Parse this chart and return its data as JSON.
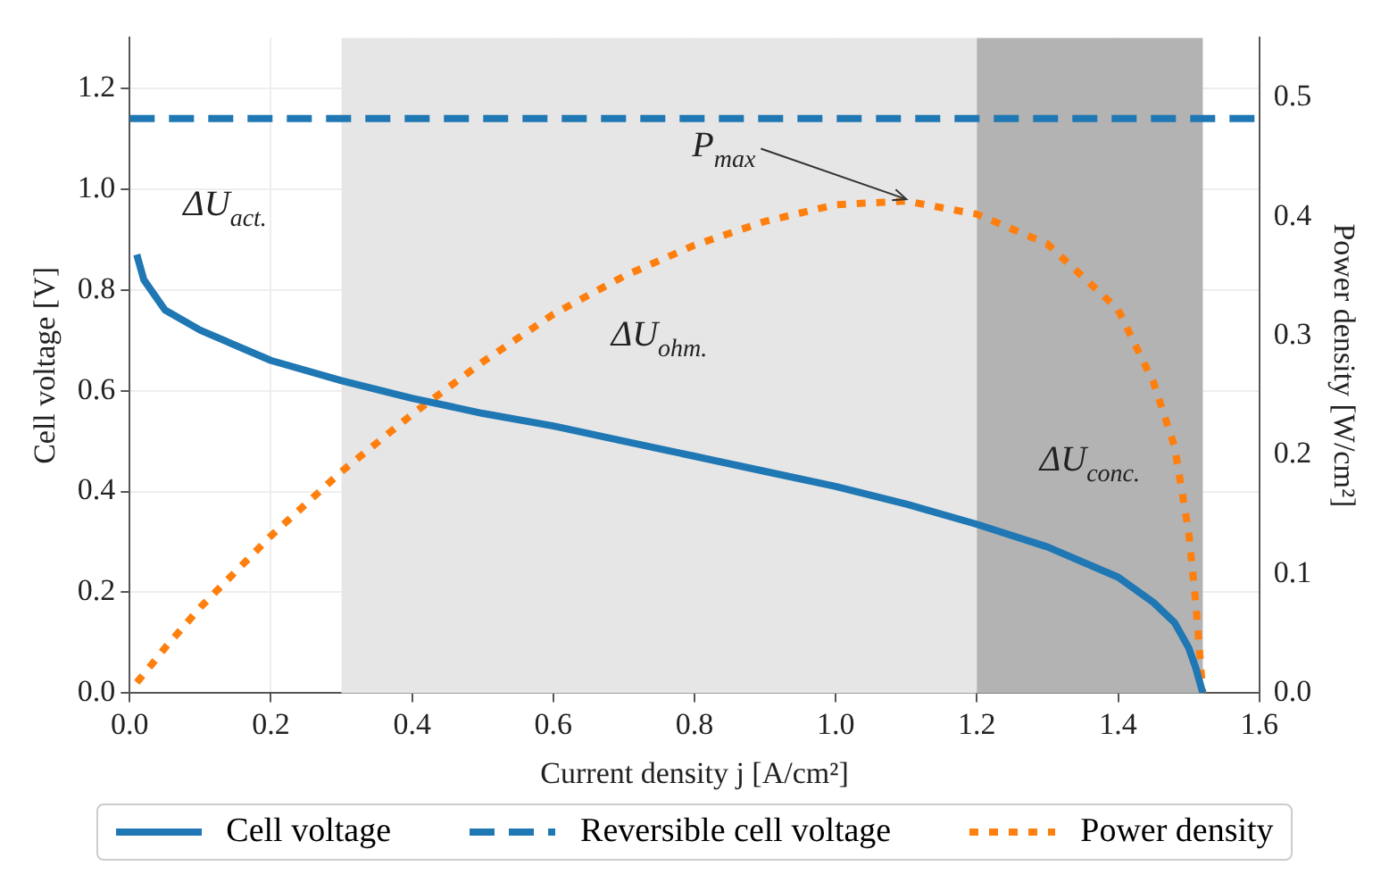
{
  "chart_data": {
    "type": "line",
    "xlabel": "Current density j [A/cm²]",
    "ylabel": "Cell voltage [V]",
    "y2label": "Power density [W/cm²]",
    "xlim": [
      0,
      1.6
    ],
    "xticks": [
      {
        "value": 0,
        "label": "0.0"
      },
      {
        "value": 0.2,
        "label": "0.2"
      },
      {
        "value": 0.4,
        "label": "0.4"
      },
      {
        "value": 0.6,
        "label": "0.6"
      },
      {
        "value": 0.8,
        "label": "0.8"
      },
      {
        "value": 1.0,
        "label": "1.0"
      },
      {
        "value": 1.2,
        "label": "1.2"
      },
      {
        "value": 1.4,
        "label": "1.4"
      },
      {
        "value": 1.6,
        "label": "1.6"
      }
    ],
    "ylim": [
      0,
      1.3
    ],
    "yticks": [
      {
        "value": 0,
        "label": "0.0"
      },
      {
        "value": 0.2,
        "label": "0.2"
      },
      {
        "value": 0.4,
        "label": "0.4"
      },
      {
        "value": 0.6,
        "label": "0.6"
      },
      {
        "value": 0.8,
        "label": "0.8"
      },
      {
        "value": 1.0,
        "label": "1.0"
      },
      {
        "value": 1.2,
        "label": "1.2"
      }
    ],
    "y2lim": [
      0,
      0.55
    ],
    "y2ticks": [
      {
        "value": 0,
        "label": "0.0"
      },
      {
        "value": 0.1,
        "label": "0.1"
      },
      {
        "value": 0.2,
        "label": "0.2"
      },
      {
        "value": 0.3,
        "label": "0.3"
      },
      {
        "value": 0.4,
        "label": "0.4"
      },
      {
        "value": 0.5,
        "label": "0.5"
      }
    ],
    "x": [
      0.01,
      0.02,
      0.05,
      0.1,
      0.2,
      0.3,
      0.4,
      0.5,
      0.6,
      0.7,
      0.8,
      0.9,
      1.0,
      1.1,
      1.2,
      1.3,
      1.4,
      1.45,
      1.48,
      1.5,
      1.51,
      1.52
    ],
    "series": [
      {
        "name": "Cell voltage",
        "color": "#1f77b4",
        "line_style": "solid",
        "values": [
          0.87,
          0.82,
          0.76,
          0.72,
          0.66,
          0.62,
          0.585,
          0.555,
          0.53,
          0.5,
          0.47,
          0.44,
          0.41,
          0.375,
          0.335,
          0.29,
          0.23,
          0.18,
          0.14,
          0.09,
          0.05,
          0.0
        ]
      },
      {
        "name": "Reversible cell voltage",
        "color": "#1f77b4",
        "line_style": "dashed",
        "x": [
          0,
          1.6
        ],
        "values": [
          1.14,
          1.14
        ]
      },
      {
        "name": "Power density",
        "color": "#ff7f0e",
        "line_style": "dotted",
        "axis": "y2",
        "values": [
          0.009,
          0.016,
          0.038,
          0.072,
          0.132,
          0.186,
          0.234,
          0.278,
          0.318,
          0.35,
          0.376,
          0.396,
          0.41,
          0.413,
          0.402,
          0.377,
          0.322,
          0.261,
          0.207,
          0.135,
          0.076,
          0.0
        ]
      }
    ],
    "bands": [
      {
        "axis": "x",
        "from": 0.3,
        "to": 1.2,
        "label": "ΔU$_{ohm.}$",
        "color": "#e6e6e6"
      },
      {
        "axis": "x",
        "from": 1.2,
        "to": 1.52,
        "label": "ΔU$_{conc.}$",
        "color": "#b3b3b3"
      }
    ],
    "annotations": [
      "ΔU$_{act.}$",
      {
        "text": "P$_{max}$",
        "x": 1.1,
        "y": 0.98
      }
    ],
    "grid": true,
    "legend": "bottom",
    "marker": "none"
  }
}
